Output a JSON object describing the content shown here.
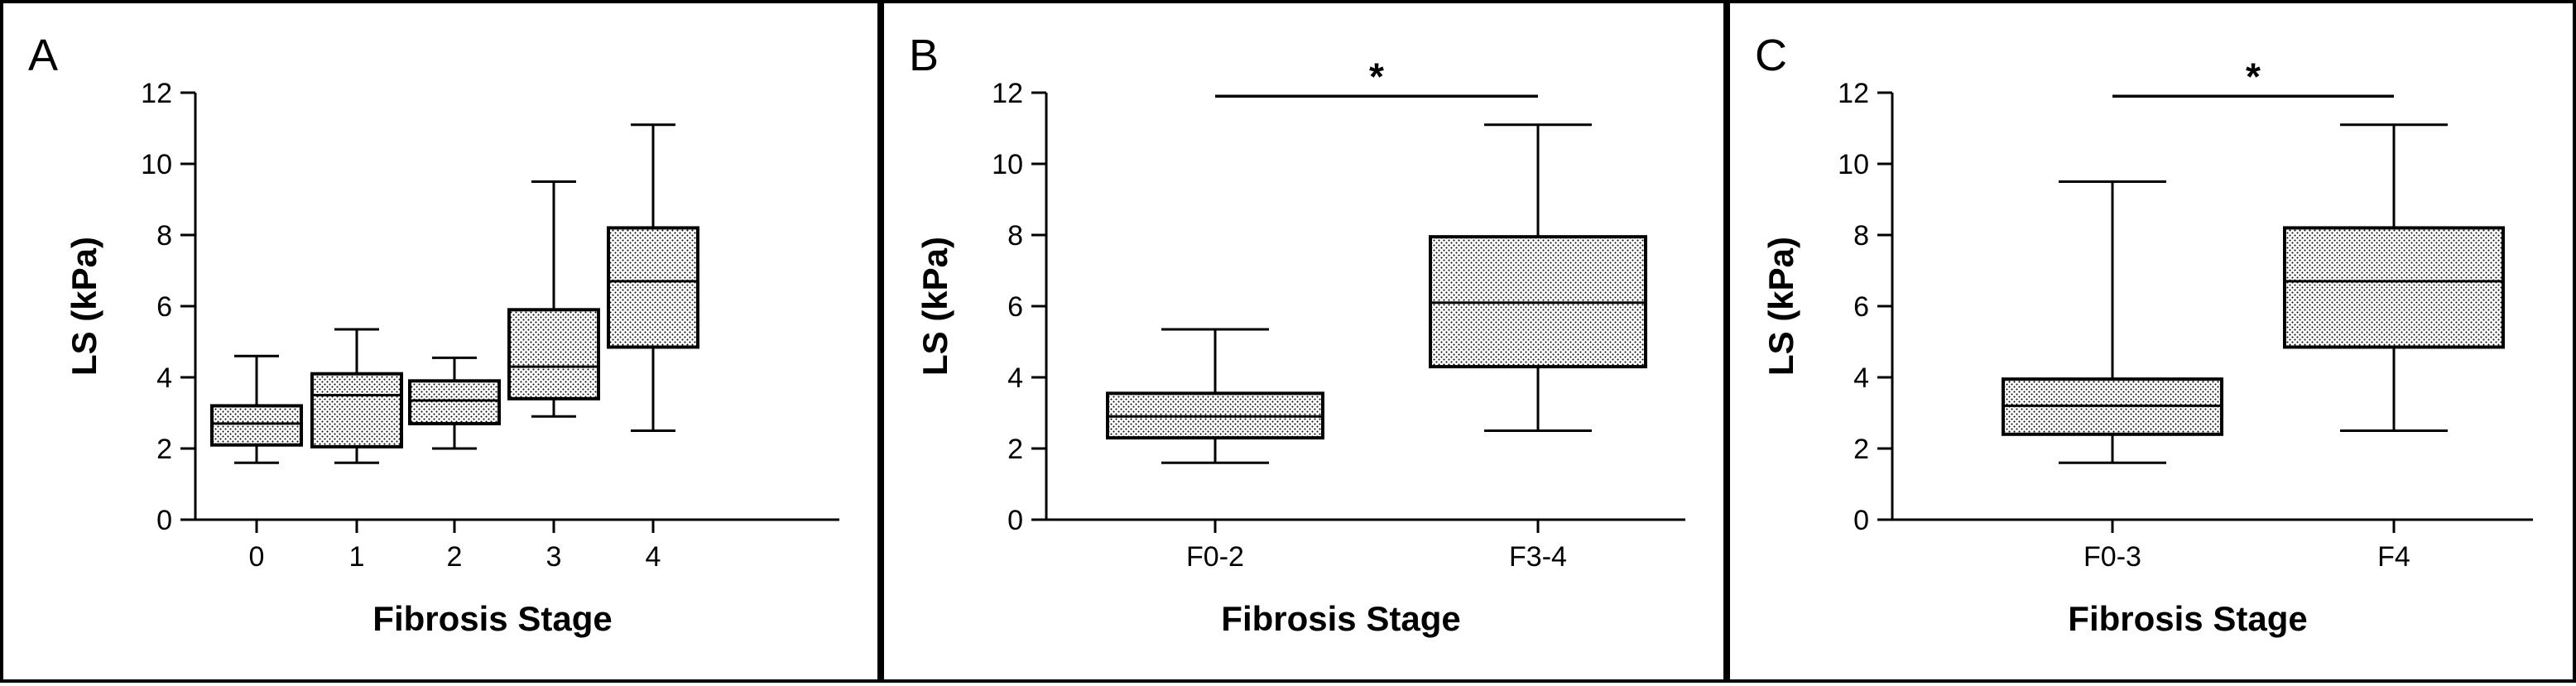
{
  "colors": {
    "box_fill_pattern": "#000000",
    "line": "#000000",
    "background": "#ffffff"
  },
  "chart_data": [
    {
      "type": "box",
      "panel_label": "A",
      "xlabel": "Fibrosis Stage",
      "ylabel": "LS (kPa)",
      "ylim": [
        0,
        12
      ],
      "yticks": [
        0,
        2,
        4,
        6,
        8,
        10,
        12
      ],
      "categories": [
        "0",
        "1",
        "2",
        "3",
        "4"
      ],
      "boxes": [
        {
          "min": 1.6,
          "q1": 2.1,
          "median": 2.7,
          "q3": 3.2,
          "max": 4.6
        },
        {
          "min": 1.6,
          "q1": 2.05,
          "median": 3.5,
          "q3": 4.1,
          "max": 5.35
        },
        {
          "min": 2.0,
          "q1": 2.7,
          "median": 3.35,
          "q3": 3.9,
          "max": 4.55
        },
        {
          "min": 2.9,
          "q1": 3.4,
          "median": 4.3,
          "q3": 5.9,
          "max": 9.5
        },
        {
          "min": 2.5,
          "q1": 4.85,
          "median": 6.7,
          "q3": 8.2,
          "max": 11.1
        }
      ],
      "significance": null
    },
    {
      "type": "box",
      "panel_label": "B",
      "xlabel": "Fibrosis Stage",
      "ylabel": "LS (kPa)",
      "ylim": [
        0,
        12
      ],
      "yticks": [
        0,
        2,
        4,
        6,
        8,
        10,
        12
      ],
      "categories": [
        "F0-2",
        "F3-4"
      ],
      "boxes": [
        {
          "min": 1.6,
          "q1": 2.3,
          "median": 2.9,
          "q3": 3.55,
          "max": 5.35
        },
        {
          "min": 2.5,
          "q1": 4.3,
          "median": 6.1,
          "q3": 7.95,
          "max": 11.1
        }
      ],
      "significance": {
        "label": "*",
        "y": 11.9
      }
    },
    {
      "type": "box",
      "panel_label": "C",
      "xlabel": "Fibrosis Stage",
      "ylabel": "LS (kPa)",
      "ylim": [
        0,
        12
      ],
      "yticks": [
        0,
        2,
        4,
        6,
        8,
        10,
        12
      ],
      "categories": [
        "F0-3",
        "F4"
      ],
      "boxes": [
        {
          "min": 1.6,
          "q1": 2.4,
          "median": 3.2,
          "q3": 3.95,
          "max": 9.5
        },
        {
          "min": 2.5,
          "q1": 4.85,
          "median": 6.7,
          "q3": 8.2,
          "max": 11.1
        }
      ],
      "significance": {
        "label": "*",
        "y": 11.9
      }
    }
  ]
}
